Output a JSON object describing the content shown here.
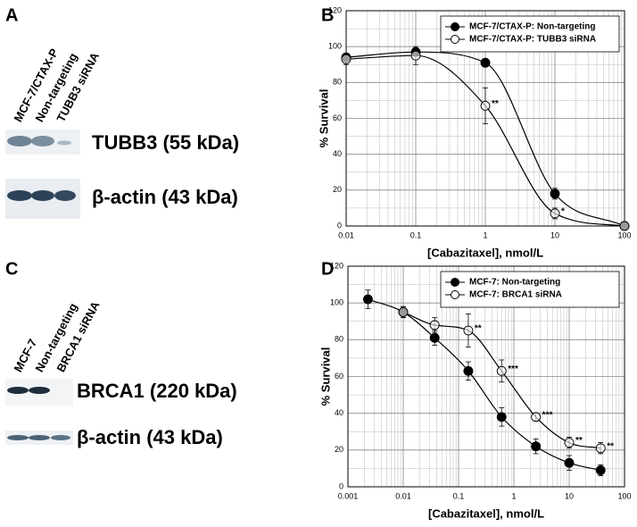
{
  "panel_labels": [
    "A",
    "B",
    "C",
    "D"
  ],
  "blots": [
    {
      "lanes": [
        "MCF-7/CTAX-P",
        "Non-targeting",
        "TUBB3 siRNA"
      ],
      "bands": [
        "TUBB3 (55 kDa)",
        "β-actin (43 kDa)"
      ]
    },
    {
      "lanes": [
        "MCF-7",
        "Non-targeting",
        "BRCA1 siRNA"
      ],
      "bands": [
        "BRCA1 (220 kDa)",
        "β-actin (43 kDa)"
      ]
    }
  ],
  "chart_data": [
    {
      "type": "scatter",
      "xlabel": "[Cabazitaxel], nmol/L",
      "ylabel": "% Survival",
      "xscale": "log",
      "xlim": [
        0.01,
        100
      ],
      "xticks": [
        0.01,
        0.1,
        1,
        10,
        100
      ],
      "ylim": [
        0,
        120
      ],
      "yticks": [
        0,
        20,
        40,
        60,
        80,
        100,
        120
      ],
      "grid": true,
      "legend": "upper right",
      "series": [
        {
          "name": "MCF-7/CTAX-P: Non-targeting",
          "color": "#000000",
          "marker_fill": true,
          "x": [
            0.01,
            0.1,
            1,
            10,
            100
          ],
          "values": [
            94,
            97,
            91,
            18,
            0
          ],
          "error": [
            2,
            2,
            2,
            3,
            0
          ]
        },
        {
          "name": "MCF-7/CTAX-P: TUBB3 siRNA",
          "color": "#000000",
          "marker_fill": false,
          "x": [
            0.01,
            0.1,
            1,
            10,
            100
          ],
          "values": [
            93,
            95,
            67,
            7,
            0
          ],
          "error": [
            3,
            5,
            10,
            3,
            0
          ]
        }
      ],
      "annotations": [
        {
          "text": "**",
          "x": 1,
          "y": 67
        },
        {
          "text": "*",
          "x": 10,
          "y": 7
        }
      ]
    },
    {
      "type": "scatter",
      "xlabel": "[Cabazitaxel], nmol/L",
      "ylabel": "% Survival",
      "xscale": "log",
      "xlim": [
        0.001,
        100
      ],
      "xticks": [
        0.001,
        0.01,
        0.1,
        1,
        10,
        100
      ],
      "ylim": [
        0,
        120
      ],
      "yticks": [
        0,
        20,
        40,
        60,
        80,
        100,
        120
      ],
      "grid": true,
      "legend": "upper right",
      "series": [
        {
          "name": "MCF-7: Non-targeting",
          "color": "#000000",
          "marker_fill": true,
          "x": [
            0.0023,
            0.01,
            0.037,
            0.15,
            0.6,
            2.5,
            10,
            37
          ],
          "values": [
            102,
            95,
            81,
            63,
            38,
            22,
            13,
            9
          ],
          "error": [
            5,
            3,
            4,
            5,
            5,
            4,
            4,
            3
          ]
        },
        {
          "name": "MCF-7: BRCA1 siRNA",
          "color": "#000000",
          "marker_fill": false,
          "x": [
            0.01,
            0.037,
            0.15,
            0.6,
            2.5,
            10,
            37
          ],
          "values": [
            95,
            88,
            85,
            63,
            38,
            24,
            21
          ],
          "error": [
            3,
            4,
            9,
            6,
            2,
            3,
            3
          ]
        }
      ],
      "annotations": [
        {
          "text": "**",
          "x": 0.15,
          "y": 85
        },
        {
          "text": "***",
          "x": 0.6,
          "y": 63
        },
        {
          "text": "***",
          "x": 2.5,
          "y": 38
        },
        {
          "text": "**",
          "x": 10,
          "y": 24
        },
        {
          "text": "**",
          "x": 37,
          "y": 21
        }
      ]
    }
  ]
}
